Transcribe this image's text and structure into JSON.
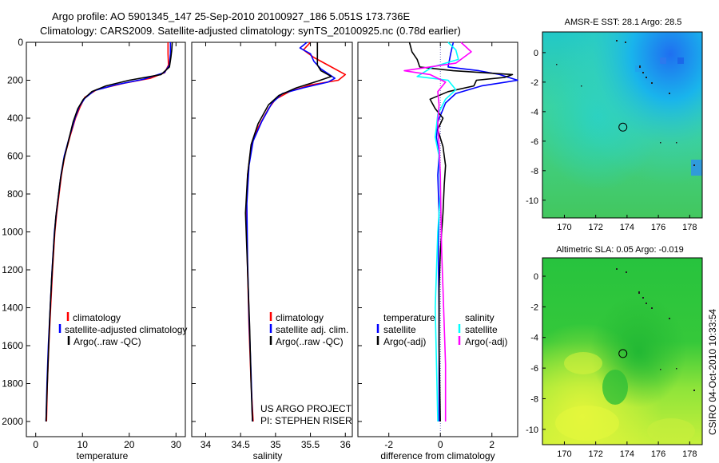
{
  "header": {
    "line1": "Argo profile: AO 5901345_147 25-Sep-2010 20100927_186 5.051S 173.736E",
    "line2": "Climatology: CARS2009. Satellite-adjusted climatology: synTS_20100925.nc (0.78d earlier)"
  },
  "credit": {
    "line1": "US ARGO PROJECT",
    "line2": "PI: STEPHEN RISER",
    "stamp": "CSIRO 04-Oct-2010 10:33:54"
  },
  "colors": {
    "climatology": "#ff0000",
    "satellite": "#0000ff",
    "argo": "#000000",
    "salinity_satellite": "#00ffff",
    "salinity_argo": "#ff00ff"
  },
  "chart_data": [
    {
      "id": "temperature",
      "type": "line",
      "xlabel": "temperature",
      "xlim": [
        -2,
        32
      ],
      "ylim": [
        0,
        2080
      ],
      "y_reversed": true,
      "xticks": [
        0,
        10,
        20,
        30
      ],
      "yticks": [
        0,
        200,
        400,
        600,
        800,
        1000,
        1200,
        1400,
        1600,
        1800,
        2000
      ],
      "legend": [
        "climatology",
        "satellite-adjusted climatology",
        "Argo(..raw -QC)"
      ],
      "series": [
        {
          "name": "climatology",
          "color": "#ff0000",
          "points": [
            [
              28.3,
              0
            ],
            [
              28.3,
              60
            ],
            [
              28.4,
              120
            ],
            [
              27.6,
              160
            ],
            [
              24.5,
              190
            ],
            [
              19,
              215
            ],
            [
              13,
              250
            ],
            [
              10.5,
              290
            ],
            [
              9.5,
              340
            ],
            [
              8.5,
              400
            ],
            [
              7.3,
              500
            ],
            [
              6.2,
              600
            ],
            [
              5.5,
              700
            ],
            [
              5,
              800
            ],
            [
              4.5,
              900
            ],
            [
              4.1,
              1000
            ],
            [
              3.6,
              1200
            ],
            [
              3.2,
              1400
            ],
            [
              2.8,
              1600
            ],
            [
              2.5,
              1800
            ],
            [
              2.3,
              2000
            ]
          ]
        },
        {
          "name": "satellite-adjusted climatology",
          "color": "#0000ff",
          "points": [
            [
              28.8,
              0
            ],
            [
              28.8,
              60
            ],
            [
              28.6,
              120
            ],
            [
              27.5,
              160
            ],
            [
              23,
              195
            ],
            [
              17,
              225
            ],
            [
              12.5,
              255
            ],
            [
              10.5,
              295
            ],
            [
              9.3,
              340
            ],
            [
              8.4,
              400
            ],
            [
              7.2,
              500
            ],
            [
              6.1,
              600
            ],
            [
              5.4,
              700
            ],
            [
              4.9,
              800
            ],
            [
              4.4,
              900
            ],
            [
              4.0,
              1000
            ],
            [
              3.5,
              1200
            ],
            [
              3.1,
              1400
            ],
            [
              2.7,
              1600
            ],
            [
              2.4,
              1800
            ],
            [
              2.2,
              2000
            ]
          ]
        },
        {
          "name": "Argo(..raw -QC)",
          "color": "#000000",
          "points": [
            [
              29.2,
              0
            ],
            [
              29.1,
              40
            ],
            [
              28.9,
              80
            ],
            [
              28.6,
              130
            ],
            [
              26.8,
              170
            ],
            [
              20,
              200
            ],
            [
              15,
              230
            ],
            [
              12,
              260
            ],
            [
              10.2,
              300
            ],
            [
              9,
              350
            ],
            [
              8,
              420
            ],
            [
              7,
              520
            ],
            [
              6,
              620
            ],
            [
              5.3,
              720
            ],
            [
              4.8,
              820
            ],
            [
              4.3,
              920
            ],
            [
              3.9,
              1050
            ],
            [
              3.4,
              1250
            ],
            [
              3.0,
              1450
            ],
            [
              2.7,
              1650
            ],
            [
              2.4,
              1850
            ],
            [
              2.2,
              2000
            ]
          ]
        }
      ]
    },
    {
      "id": "salinity",
      "type": "line",
      "xlabel": "salinity",
      "xlim": [
        33.8,
        36.1
      ],
      "ylim": [
        0,
        2080
      ],
      "y_reversed": true,
      "xticks": [
        34,
        34.5,
        35,
        35.5,
        36
      ],
      "legend": [
        "climatology",
        "satellite adj. clim.",
        "Argo(..raw -QC)"
      ],
      "series": [
        {
          "name": "climatology",
          "color": "#ff0000",
          "points": [
            [
              35.5,
              0
            ],
            [
              35.4,
              40
            ],
            [
              35.55,
              80
            ],
            [
              35.75,
              120
            ],
            [
              36.0,
              170
            ],
            [
              35.9,
              200
            ],
            [
              35.5,
              225
            ],
            [
              35.2,
              260
            ],
            [
              35.0,
              300
            ],
            [
              34.9,
              350
            ],
            [
              34.75,
              450
            ],
            [
              34.65,
              550
            ],
            [
              34.6,
              700
            ],
            [
              34.58,
              900
            ],
            [
              34.6,
              1200
            ],
            [
              34.62,
              1500
            ],
            [
              34.65,
              1800
            ],
            [
              34.68,
              2000
            ]
          ]
        },
        {
          "name": "satellite adj. clim.",
          "color": "#0000ff",
          "points": [
            [
              35.45,
              0
            ],
            [
              35.35,
              30
            ],
            [
              35.5,
              60
            ],
            [
              35.55,
              100
            ],
            [
              35.65,
              140
            ],
            [
              35.85,
              190
            ],
            [
              35.75,
              210
            ],
            [
              35.4,
              240
            ],
            [
              35.1,
              270
            ],
            [
              34.95,
              320
            ],
            [
              34.8,
              420
            ],
            [
              34.68,
              520
            ],
            [
              34.62,
              650
            ],
            [
              34.59,
              850
            ],
            [
              34.6,
              1150
            ],
            [
              34.62,
              1450
            ],
            [
              34.65,
              1750
            ],
            [
              34.67,
              2000
            ]
          ]
        },
        {
          "name": "Argo(..raw -QC)",
          "color": "#000000",
          "points": [
            [
              35.6,
              0
            ],
            [
              35.6,
              40
            ],
            [
              35.6,
              80
            ],
            [
              35.6,
              120
            ],
            [
              35.65,
              150
            ],
            [
              35.8,
              180
            ],
            [
              35.6,
              205
            ],
            [
              35.3,
              240
            ],
            [
              35.05,
              280
            ],
            [
              34.9,
              330
            ],
            [
              34.75,
              430
            ],
            [
              34.65,
              540
            ],
            [
              34.6,
              700
            ],
            [
              34.57,
              900
            ],
            [
              34.6,
              1200
            ],
            [
              34.63,
              1500
            ],
            [
              34.65,
              1800
            ],
            [
              34.67,
              2000
            ]
          ]
        }
      ]
    },
    {
      "id": "difference",
      "type": "line",
      "xlabel": "difference from climatology",
      "xlim": [
        -3.2,
        3.0
      ],
      "ylim": [
        0,
        2080
      ],
      "y_reversed": true,
      "xticks": [
        -2,
        0,
        2
      ],
      "legend_temperature": {
        "title": "temperature",
        "items": [
          "satellite",
          "Argo(-adj)"
        ]
      },
      "legend_salinity": {
        "title": "salinity",
        "items": [
          "satellite",
          "Argo(-adj)"
        ]
      },
      "series": [
        {
          "name": "temperature satellite",
          "color": "#0000ff",
          "points": [
            [
              0.5,
              0
            ],
            [
              0.4,
              60
            ],
            [
              0.3,
              130
            ],
            [
              1.5,
              150
            ],
            [
              2.3,
              170
            ],
            [
              3.0,
              200
            ],
            [
              1.6,
              230
            ],
            [
              0.6,
              270
            ],
            [
              0.2,
              320
            ],
            [
              -0.1,
              420
            ],
            [
              -0.15,
              500
            ],
            [
              -0.05,
              600
            ],
            [
              -0.1,
              700
            ],
            [
              -0.05,
              900
            ],
            [
              -0.08,
              1100
            ],
            [
              -0.05,
              1400
            ],
            [
              -0.05,
              1700
            ],
            [
              -0.05,
              2000
            ]
          ]
        },
        {
          "name": "temperature Argo(-adj)",
          "color": "#000000",
          "points": [
            [
              -1.2,
              0
            ],
            [
              -1.1,
              50
            ],
            [
              -0.9,
              90
            ],
            [
              -0.8,
              130
            ],
            [
              0.5,
              150
            ],
            [
              2.8,
              170
            ],
            [
              2.5,
              185
            ],
            [
              1.4,
              200
            ],
            [
              1.3,
              230
            ],
            [
              0.3,
              260
            ],
            [
              -0.4,
              300
            ],
            [
              -0.2,
              350
            ],
            [
              0.1,
              400
            ],
            [
              -0.1,
              460
            ],
            [
              0.1,
              550
            ],
            [
              0.2,
              650
            ],
            [
              0.15,
              750
            ],
            [
              0.1,
              900
            ],
            [
              0.05,
              1000
            ],
            [
              0.0,
              1100
            ],
            [
              -0.05,
              1300
            ],
            [
              -0.05,
              1600
            ],
            [
              0.0,
              2000
            ]
          ]
        },
        {
          "name": "salinity satellite",
          "color": "#00ffff",
          "points": [
            [
              0.3,
              0
            ],
            [
              0.6,
              40
            ],
            [
              0.7,
              90
            ],
            [
              -0.3,
              130
            ],
            [
              -0.9,
              180
            ],
            [
              0.3,
              200
            ],
            [
              0.6,
              250
            ],
            [
              0.2,
              300
            ],
            [
              -0.1,
              380
            ],
            [
              -0.2,
              500
            ],
            [
              -0.05,
              600
            ],
            [
              0.0,
              800
            ],
            [
              -0.1,
              1000
            ],
            [
              -0.15,
              1200
            ],
            [
              -0.2,
              1400
            ],
            [
              -0.15,
              1700
            ],
            [
              -0.1,
              2000
            ]
          ]
        },
        {
          "name": "salinity Argo(-adj)",
          "color": "#ff00ff",
          "points": [
            [
              0.8,
              0
            ],
            [
              1.2,
              50
            ],
            [
              0.6,
              110
            ],
            [
              -1.4,
              150
            ],
            [
              -0.4,
              170
            ],
            [
              0.2,
              210
            ],
            [
              -0.1,
              260
            ],
            [
              -0.05,
              330
            ],
            [
              -0.1,
              420
            ],
            [
              -0.05,
              550
            ],
            [
              0.0,
              700
            ],
            [
              0.02,
              900
            ],
            [
              0.05,
              1100
            ],
            [
              0.1,
              1300
            ],
            [
              0.15,
              1500
            ],
            [
              0.2,
              1700
            ],
            [
              0.2,
              2000
            ]
          ]
        }
      ]
    },
    {
      "id": "sst_map",
      "type": "heatmap",
      "title": "AMSR-E SST: 28.1  Argo: 28.5",
      "xlim": [
        168.6,
        178.8
      ],
      "ylim": [
        -11.2,
        1.4
      ],
      "xticks": [
        170,
        172,
        174,
        176,
        178
      ],
      "yticks": [
        0,
        -2,
        -4,
        -6,
        -8,
        -10
      ],
      "marker": {
        "lon": 173.736,
        "lat": -5.051
      }
    },
    {
      "id": "sla_map",
      "type": "heatmap",
      "title": "Altimetric SLA: 0.05  Argo: -0.019",
      "xlim": [
        168.6,
        178.8
      ],
      "ylim": [
        -11.0,
        1.2
      ],
      "xticks": [
        170,
        172,
        174,
        176,
        178
      ],
      "yticks": [
        0,
        -2,
        -4,
        -6,
        -8,
        -10
      ],
      "marker": {
        "lon": 173.736,
        "lat": -5.051
      }
    }
  ]
}
